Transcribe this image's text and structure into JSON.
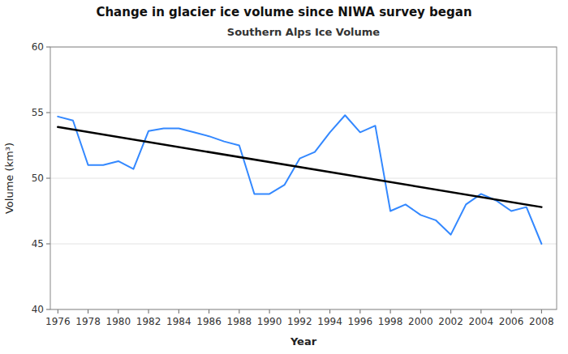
{
  "chart_data": {
    "type": "line",
    "title": "Change in glacier ice volume since NIWA survey began",
    "subtitle": "Southern Alps Ice Volume",
    "xlabel": "Year",
    "ylabel": "Volume (km³)",
    "xlim": [
      1975.5,
      2009
    ],
    "ylim": [
      40,
      60
    ],
    "xticks": [
      1976,
      1978,
      1980,
      1982,
      1984,
      1986,
      1988,
      1990,
      1992,
      1994,
      1996,
      1998,
      2000,
      2002,
      2004,
      2006,
      2008
    ],
    "yticks": [
      40,
      45,
      50,
      55,
      60
    ],
    "grid": true,
    "series": [
      {
        "color": "#3388ff",
        "x": [
          1976,
          1977,
          1978,
          1979,
          1980,
          1981,
          1982,
          1983,
          1984,
          1985,
          1986,
          1987,
          1988,
          1989,
          1990,
          1991,
          1992,
          1993,
          1994,
          1995,
          1996,
          1997,
          1998,
          1999,
          2000,
          2001,
          2002,
          2003,
          2004,
          2005,
          2006,
          2007,
          2008
        ],
        "values": [
          54.7,
          54.4,
          51.0,
          51.0,
          51.3,
          50.7,
          53.6,
          53.8,
          53.8,
          53.5,
          53.2,
          52.8,
          52.5,
          48.8,
          48.8,
          49.5,
          51.5,
          52.0,
          53.5,
          54.8,
          53.5,
          54.0,
          47.5,
          48.0,
          47.2,
          46.8,
          45.7,
          48.0,
          48.8,
          48.3,
          47.5,
          47.8,
          45.0
        ]
      },
      {
        "color": "#000000",
        "x": [
          1976,
          2008
        ],
        "values": [
          53.9,
          47.8
        ]
      }
    ]
  }
}
